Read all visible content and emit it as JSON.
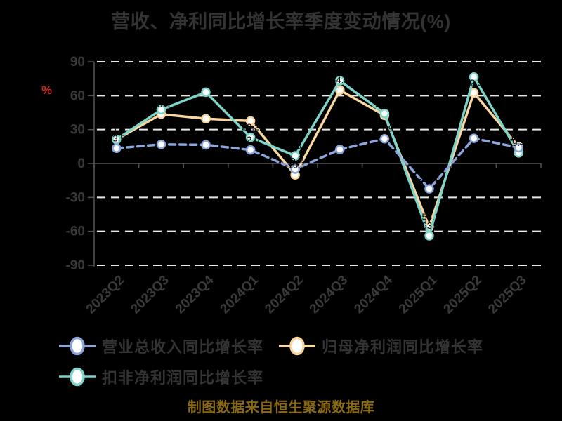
{
  "title": "营收、净利同比增长率季度变动情况(%)",
  "y_axis_name": "%",
  "source_note": "制图数据来自恒生聚源数据库",
  "colors": {
    "background": "#000000",
    "title": "#333333",
    "axis_label": "#3a3a3a",
    "axis_line": "#545454",
    "gridline": "#e8e8e8",
    "y_axis_name": "#d02622",
    "source_note": "#8a6a14",
    "marker_fill": "#ffffff",
    "data_label": "#000000"
  },
  "legend": [
    {
      "label": "营业总收入同比增长率",
      "color": "#8CA5DB",
      "style": "dashed"
    },
    {
      "label": "归母净利润同比增长率",
      "color": "#FAD7A0",
      "style": "solid"
    },
    {
      "label": "扣非净利润同比增长率",
      "color": "#7FD4CA",
      "style": "solid"
    }
  ],
  "chart_data": {
    "type": "line",
    "title": "营收、净利同比增长率季度变动情况(%)",
    "xlabel": "",
    "ylabel": "%",
    "ylim": [
      -90,
      90
    ],
    "ytick_step": 30,
    "grid": "horizontal-dashed",
    "legend_position": "bottom-left",
    "categories": [
      "2023Q2",
      "2023Q3",
      "2023Q4",
      "2024Q1",
      "2024Q2",
      "2024Q3",
      "2024Q4",
      "2025Q1",
      "2025Q2",
      "2025Q3"
    ],
    "series": [
      {
        "name": "营业总收入同比增长率",
        "color": "#8CA5DB",
        "style": "dashed",
        "values": [
          13.5,
          16.9,
          16.5,
          12.0,
          -5.0,
          12.4,
          21.9,
          -22.4,
          22.3,
          14.0
        ]
      },
      {
        "name": "归母净利润同比增长率",
        "color": "#FAD7A0",
        "style": "solid",
        "values": [
          21.3,
          43.6,
          39.6,
          37.6,
          -10.1,
          64.9,
          42.6,
          -56.2,
          62.5,
          15.0
        ]
      },
      {
        "name": "扣非净利润同比增长率",
        "color": "#7FD4CA",
        "style": "solid",
        "values": [
          21.3,
          47.6,
          63.1,
          23.2,
          6.8,
          73.2,
          44.2,
          -63.9,
          76.5,
          9.4
        ]
      }
    ]
  }
}
